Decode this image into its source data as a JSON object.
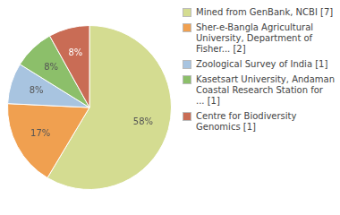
{
  "chart_data": {
    "type": "pie",
    "categories": [
      "Mined from GenBank, NCBI [7]",
      "Sher-e-Bangla Agricultural\nUniversity, Department of\nFisher... [2]",
      "Zoological Survey of India [1]",
      "Kasetsart University, Andaman\nCoastal Research Station for\n... [1]",
      "Centre for Biodiversity\nGenomics [1]"
    ],
    "values": [
      58,
      17,
      8,
      8,
      8
    ],
    "value_labels": [
      "58%",
      "17%",
      "8%",
      "8%",
      "8%"
    ],
    "colors": [
      "#d4dc91",
      "#f0a050",
      "#a8c4e0",
      "#8cbf6a",
      "#c96c55"
    ],
    "data_labels": true,
    "legend": "right"
  }
}
